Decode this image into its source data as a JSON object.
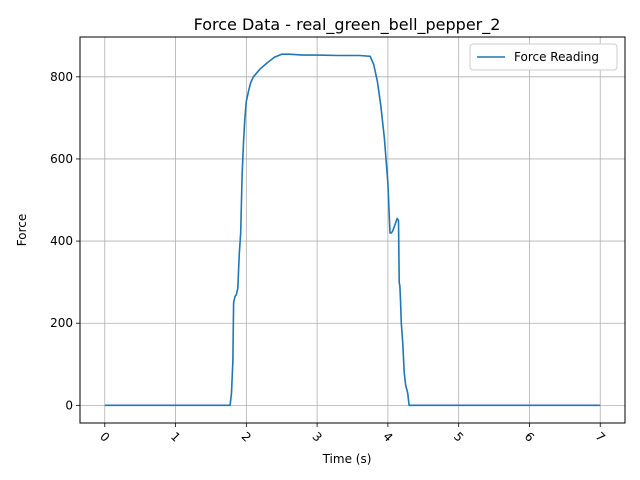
{
  "chart_data": {
    "type": "line",
    "title": "Force Data - real_green_bell_pepper_2",
    "xlabel": "Time (s)",
    "ylabel": "Force",
    "xlim": [
      -0.35,
      7.35
    ],
    "ylim": [
      -43,
      897
    ],
    "xticks": [
      0,
      1,
      2,
      3,
      4,
      5,
      6,
      7
    ],
    "yticks": [
      0,
      200,
      400,
      600,
      800
    ],
    "grid": true,
    "legend_position": "top-right",
    "colors": {
      "line": "#1f77b4",
      "grid": "#b0b0b0"
    },
    "series": [
      {
        "name": "Force Reading",
        "x": [
          0,
          1.0,
          1.77,
          1.79,
          1.81,
          1.82,
          1.84,
          1.86,
          1.88,
          1.9,
          1.92,
          1.94,
          1.96,
          1.98,
          2.0,
          2.03,
          2.06,
          2.1,
          2.15,
          2.2,
          2.3,
          2.4,
          2.5,
          2.6,
          2.8,
          3.0,
          3.3,
          3.6,
          3.75,
          3.8,
          3.85,
          3.9,
          3.95,
          4.0,
          4.03,
          4.05,
          4.07,
          4.1,
          4.13,
          4.15,
          4.16,
          4.17,
          4.18,
          4.19,
          4.21,
          4.23,
          4.25,
          4.28,
          4.3,
          4.32,
          4.33,
          5.0,
          6.0,
          7.0
        ],
        "y": [
          0,
          0,
          0,
          30,
          110,
          250,
          265,
          270,
          285,
          370,
          420,
          560,
          640,
          700,
          740,
          765,
          785,
          800,
          810,
          820,
          835,
          848,
          855,
          855,
          853,
          853,
          852,
          852,
          850,
          830,
          790,
          730,
          650,
          540,
          420,
          420,
          425,
          440,
          455,
          450,
          300,
          290,
          250,
          200,
          150,
          80,
          50,
          30,
          0,
          0,
          0,
          0,
          0,
          0
        ]
      }
    ]
  }
}
